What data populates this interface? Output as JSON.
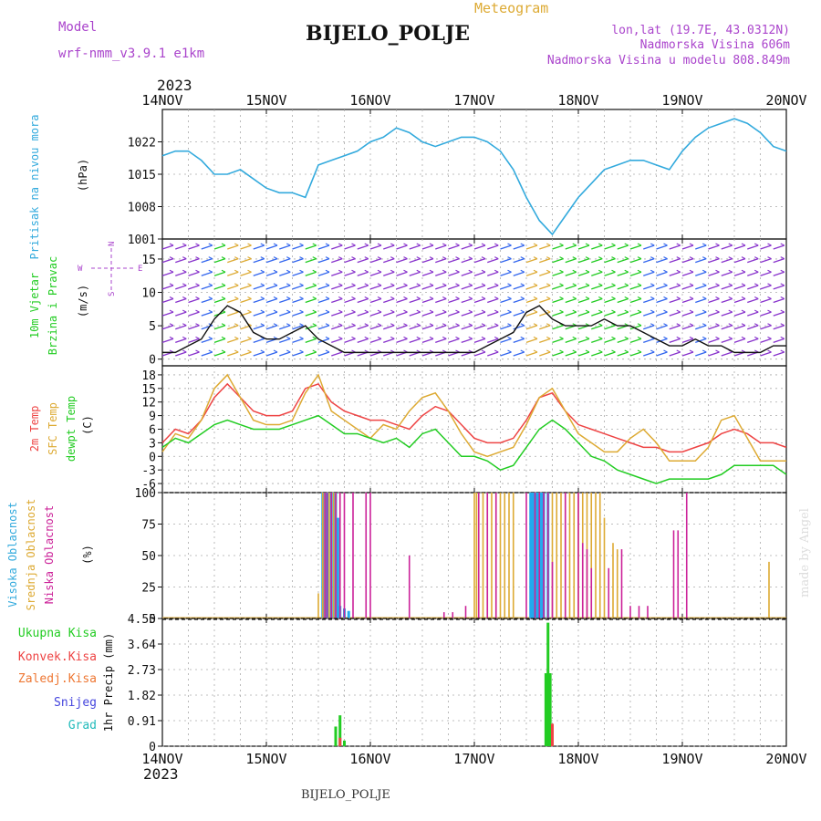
{
  "header": {
    "model_label": "Model",
    "model_name": "wrf-nmm_v3.9.1  e1km",
    "title": "BIJELO_POLJE",
    "meteogram": "Meteogram",
    "lonlat": "lon,lat (19.7E, 43.0312N)",
    "altitude": "Nadmorska Visina 606m",
    "model_altitude": "Nadmorska Visina u modelu 808.849m",
    "footer_station": "BIJELO_POLJE",
    "watermark": "made by Angel"
  },
  "time_axis": {
    "year": "2023",
    "days": [
      "14NOV",
      "15NOV",
      "16NOV",
      "17NOV",
      "18NOV",
      "19NOV",
      "20NOV"
    ]
  },
  "colors": {
    "pressure": "#33aadd",
    "t2m": "#ee4444",
    "sfc": "#ddaa33",
    "dewpt": "#22cc22",
    "high_cloud": "#22aaee",
    "mid_cloud": "#ddaa33",
    "low_cloud": "#cc2299",
    "precip_total": "#22cc22",
    "precip_conv": "#ee4444",
    "precip_frozen": "#ee7733",
    "snow": "#4444dd",
    "hail": "#22bbbb",
    "wind_axis": "#aa44cc"
  },
  "chart_data": [
    {
      "type": "line",
      "id": "pressure",
      "ylabel_1": "Pritisak na nivou mora",
      "ylabel_2": "(hPa)",
      "ylim": [
        1001,
        1029
      ],
      "yticks": [
        "1001",
        "1008",
        "1015",
        "1022"
      ],
      "grid": true,
      "x": [
        0,
        3,
        6,
        9,
        12,
        15,
        18,
        21,
        24,
        27,
        30,
        33,
        36,
        39,
        42,
        45,
        48,
        51,
        54,
        57,
        60,
        63,
        66,
        69,
        72,
        75,
        78,
        81,
        84,
        87,
        90,
        93,
        96,
        99,
        102,
        105,
        108,
        111,
        114,
        117,
        120,
        123,
        126,
        129,
        132,
        135,
        138,
        141,
        144
      ],
      "series": [
        {
          "values": [
            1019,
            1020,
            1020,
            1018,
            1015,
            1015,
            1016,
            1014,
            1012,
            1011,
            1011,
            1010,
            1017,
            1018,
            1019,
            1020,
            1022,
            1023,
            1025,
            1024,
            1022,
            1021,
            1022,
            1023,
            1023,
            1022,
            1020,
            1016,
            1010,
            1005,
            1002,
            1006,
            1010,
            1013,
            1016,
            1017,
            1018,
            1018,
            1017,
            1016,
            1020,
            1023,
            1025,
            1026,
            1027,
            1026,
            1024,
            1021,
            1020
          ]
        }
      ]
    },
    {
      "type": "line",
      "id": "wind",
      "ylabel_1": "10m Vjetar",
      "ylabel_2": "Brzina i Pravac",
      "ylabel_3": "(m/s)",
      "compass": [
        "W",
        "E",
        "N",
        "S"
      ],
      "ylim": [
        -1,
        18
      ],
      "yticks": [
        "0",
        "5",
        "10",
        "15"
      ],
      "grid": true,
      "x": [
        0,
        3,
        6,
        9,
        12,
        15,
        18,
        21,
        24,
        27,
        30,
        33,
        36,
        39,
        42,
        45,
        48,
        51,
        54,
        57,
        60,
        63,
        66,
        69,
        72,
        75,
        78,
        81,
        84,
        87,
        90,
        93,
        96,
        99,
        102,
        105,
        108,
        111,
        114,
        117,
        120,
        123,
        126,
        129,
        132,
        135,
        138,
        141,
        144
      ],
      "series": [
        {
          "name": "speed",
          "values": [
            1,
            1,
            2,
            3,
            6,
            8,
            7,
            4,
            3,
            3,
            4,
            5,
            3,
            2,
            1,
            1,
            1,
            1,
            1,
            1,
            1,
            1,
            1,
            1,
            1,
            2,
            3,
            4,
            7,
            8,
            6,
            5,
            5,
            5,
            6,
            5,
            5,
            4,
            3,
            2,
            2,
            3,
            2,
            2,
            1,
            1,
            1,
            2,
            2
          ]
        }
      ]
    },
    {
      "type": "line",
      "id": "temperature",
      "ylabel_1": "2m Temp",
      "ylabel_2": "SFC Temp",
      "ylabel_3": "dewpt Temp",
      "ylabel_4": "(C)",
      "ylim": [
        -8,
        20
      ],
      "yticks": [
        "-6",
        "-3",
        "0",
        "3",
        "6",
        "9",
        "12",
        "15",
        "18"
      ],
      "grid": true,
      "x": [
        0,
        3,
        6,
        9,
        12,
        15,
        18,
        21,
        24,
        27,
        30,
        33,
        36,
        39,
        42,
        45,
        48,
        51,
        54,
        57,
        60,
        63,
        66,
        69,
        72,
        75,
        78,
        81,
        84,
        87,
        90,
        93,
        96,
        99,
        102,
        105,
        108,
        111,
        114,
        117,
        120,
        123,
        126,
        129,
        132,
        135,
        138,
        141,
        144
      ],
      "series": [
        {
          "name": "2m Temp",
          "values": [
            3,
            6,
            5,
            8,
            13,
            16,
            13,
            10,
            9,
            9,
            10,
            15,
            16,
            12,
            10,
            9,
            8,
            8,
            7,
            6,
            9,
            11,
            10,
            7,
            4,
            3,
            3,
            4,
            8,
            13,
            14,
            10,
            7,
            6,
            5,
            4,
            3,
            2,
            2,
            1,
            1,
            2,
            3,
            5,
            6,
            5,
            3,
            3,
            2
          ]
        },
        {
          "name": "SFC Temp",
          "values": [
            1,
            5,
            4,
            8,
            15,
            18,
            13,
            8,
            7,
            7,
            8,
            14,
            18,
            10,
            8,
            6,
            4,
            7,
            6,
            10,
            13,
            14,
            10,
            5,
            1,
            0,
            1,
            2,
            7,
            13,
            15,
            10,
            5,
            3,
            1,
            1,
            4,
            6,
            3,
            -1,
            -1,
            -1,
            2,
            8,
            9,
            4,
            -1,
            -1,
            -1
          ]
        },
        {
          "name": "dewpt Temp",
          "values": [
            2,
            4,
            3,
            5,
            7,
            8,
            7,
            6,
            6,
            6,
            7,
            8,
            9,
            7,
            5,
            5,
            4,
            3,
            4,
            2,
            5,
            6,
            3,
            0,
            0,
            -1,
            -3,
            -2,
            2,
            6,
            8,
            6,
            3,
            0,
            -1,
            -3,
            -4,
            -5,
            -6,
            -5,
            -5,
            -5,
            -5,
            -4,
            -2,
            -2,
            -2,
            -2,
            -4
          ]
        }
      ]
    },
    {
      "type": "bar",
      "id": "clouds",
      "ylabel_1": "Visoka Oblacnost",
      "ylabel_2": "Srednja Oblacnost",
      "ylabel_3": "Niska Oblacnost",
      "ylabel_4": "(%)",
      "ylim": [
        0,
        100
      ],
      "yticks": [
        "0",
        "25",
        "50",
        "75",
        "100"
      ],
      "grid": true,
      "series": [
        {
          "name": "high",
          "bars": [
            [
              37,
              100
            ],
            [
              38,
              100
            ],
            [
              39,
              100
            ],
            [
              40,
              100
            ],
            [
              40.5,
              80
            ],
            [
              41,
              10
            ],
            [
              42,
              8
            ],
            [
              43,
              6
            ],
            [
              85,
              100
            ],
            [
              85.5,
              100
            ],
            [
              86,
              100
            ],
            [
              86.5,
              100
            ],
            [
              87,
              100
            ],
            [
              87.5,
              100
            ],
            [
              88,
              100
            ],
            [
              89,
              100
            ]
          ]
        },
        {
          "name": "mid",
          "bars": [
            [
              36,
              20
            ],
            [
              37,
              100
            ],
            [
              37.5,
              100
            ],
            [
              38.5,
              100
            ],
            [
              39.5,
              100
            ],
            [
              40,
              100
            ],
            [
              41,
              100
            ],
            [
              72,
              100
            ],
            [
              72.5,
              100
            ],
            [
              73,
              100
            ],
            [
              74,
              100
            ],
            [
              75,
              100
            ],
            [
              76,
              100
            ],
            [
              77,
              100
            ],
            [
              78,
              100
            ],
            [
              79,
              100
            ],
            [
              80,
              100
            ],
            [
              81,
              100
            ],
            [
              90,
              100
            ],
            [
              91,
              100
            ],
            [
              92,
              100
            ],
            [
              93,
              100
            ],
            [
              94,
              100
            ],
            [
              95,
              100
            ],
            [
              96,
              100
            ],
            [
              97,
              100
            ],
            [
              98,
              100
            ],
            [
              99,
              100
            ],
            [
              100,
              100
            ],
            [
              101,
              100
            ],
            [
              102,
              80
            ],
            [
              104,
              60
            ],
            [
              105,
              55
            ],
            [
              140,
              45
            ]
          ]
        },
        {
          "name": "low",
          "bars": [
            [
              37.5,
              100
            ],
            [
              38,
              100
            ],
            [
              39,
              100
            ],
            [
              40,
              100
            ],
            [
              41,
              100
            ],
            [
              42,
              100
            ],
            [
              44,
              100
            ],
            [
              47,
              100
            ],
            [
              48,
              100
            ],
            [
              57,
              50
            ],
            [
              65,
              5
            ],
            [
              67,
              5
            ],
            [
              70,
              10
            ],
            [
              73,
              100
            ],
            [
              75,
              100
            ],
            [
              77,
              100
            ],
            [
              84,
              100
            ],
            [
              86,
              100
            ],
            [
              87,
              100
            ],
            [
              88,
              100
            ],
            [
              89,
              100
            ],
            [
              90,
              45
            ],
            [
              93,
              100
            ],
            [
              96,
              100
            ],
            [
              97,
              60
            ],
            [
              98,
              55
            ],
            [
              99,
              40
            ],
            [
              103,
              40
            ],
            [
              106,
              55
            ],
            [
              108,
              10
            ],
            [
              110,
              10
            ],
            [
              112,
              10
            ],
            [
              118,
              70
            ],
            [
              119,
              70
            ],
            [
              121,
              100
            ]
          ]
        }
      ]
    },
    {
      "type": "bar",
      "id": "precip",
      "ylabel_1": "1hr Precip (mm)",
      "legend": [
        "Ukupna Kisa",
        "Konvek.Kisa",
        "Zaledj.Kisa",
        "Snijeg",
        "Grad"
      ],
      "ylim": [
        0,
        4.55
      ],
      "yticks": [
        "0",
        "0.91",
        "1.82",
        "2.73",
        "3.64",
        "4.55"
      ],
      "grid": true,
      "series": [
        {
          "name": "Ukupna Kisa",
          "bars": [
            [
              40,
              0.7
            ],
            [
              41,
              1.1
            ],
            [
              42,
              0.2
            ],
            [
              88.5,
              2.6
            ],
            [
              89,
              4.4
            ],
            [
              89.5,
              2.6
            ],
            [
              90,
              0.5
            ]
          ]
        },
        {
          "name": "Konvek.Kisa",
          "bars": [
            [
              41,
              0.3
            ],
            [
              90,
              0.8
            ]
          ]
        }
      ]
    }
  ]
}
